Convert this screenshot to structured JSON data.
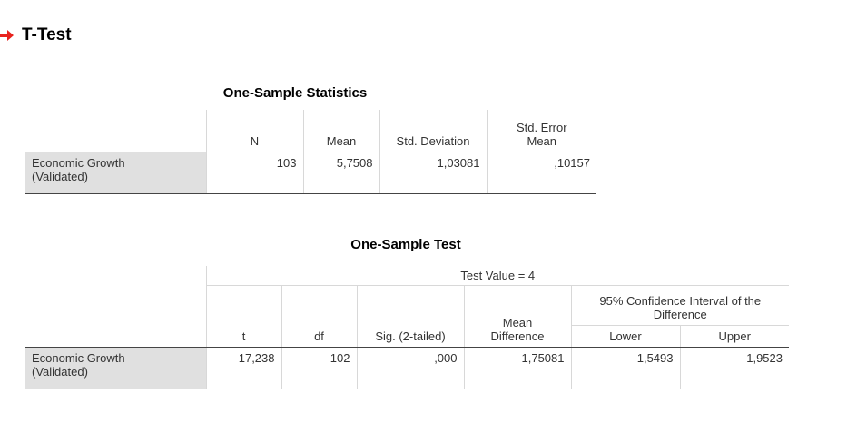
{
  "section": {
    "title": "T-Test"
  },
  "stats_table": {
    "title": "One-Sample Statistics",
    "headers": {
      "n": "N",
      "mean": "Mean",
      "std_dev": "Std. Deviation",
      "std_err_line1": "Std. Error",
      "std_err_line2": "Mean"
    },
    "row": {
      "label_line1": "Economic Growth",
      "label_line2": "(Validated)",
      "n": "103",
      "mean": "5,7508",
      "std_dev": "1,03081",
      "std_err": ",10157"
    }
  },
  "test_table": {
    "title": "One-Sample Test",
    "test_value": "Test Value = 4",
    "headers": {
      "t": "t",
      "df": "df",
      "sig": "Sig. (2-tailed)",
      "mean_diff_line1": "Mean",
      "mean_diff_line2": "Difference",
      "ci_line1": "95% Confidence Interval of the",
      "ci_line2": "Difference",
      "lower": "Lower",
      "upper": "Upper"
    },
    "row": {
      "label_line1": "Economic Growth",
      "label_line2": "(Validated)",
      "t": "17,238",
      "df": "102",
      "sig": ",000",
      "mean_diff": "1,75081",
      "lower": "1,5493",
      "upper": "1,9523"
    }
  },
  "colors": {
    "arrow": "#e8231e",
    "row_label_bg": "#e0e0e0",
    "rule": "#444444",
    "grid": "#d8d8d8"
  },
  "icons": {
    "heading_marker": "red-right-arrow-icon"
  }
}
